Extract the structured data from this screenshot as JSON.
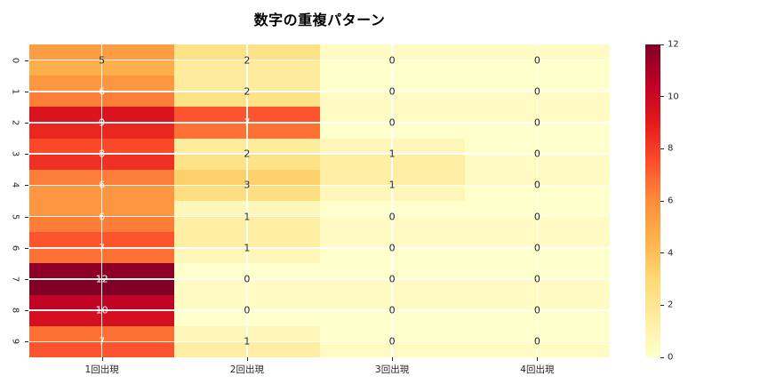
{
  "chart_data": {
    "type": "heatmap",
    "title": "数字の重複パターン",
    "row_labels": [
      "0",
      "1",
      "2",
      "3",
      "4",
      "5",
      "6",
      "7",
      "8",
      "9"
    ],
    "col_labels": [
      "1回出現",
      "2回出現",
      "3回出現",
      "4回出現"
    ],
    "values": [
      [
        5,
        2,
        0,
        0
      ],
      [
        6,
        2,
        0,
        0
      ],
      [
        9,
        7,
        0,
        0
      ],
      [
        8,
        2,
        1,
        0
      ],
      [
        6,
        3,
        1,
        0
      ],
      [
        6,
        1,
        0,
        0
      ],
      [
        7,
        1,
        0,
        0
      ],
      [
        12,
        0,
        0,
        0
      ],
      [
        10,
        0,
        0,
        0
      ],
      [
        7,
        1,
        0,
        0
      ]
    ],
    "vmin": 0,
    "vmax": 12,
    "colorbar_ticks": [
      0,
      2,
      4,
      6,
      8,
      10,
      12
    ],
    "colormap_name": "YlOrRd",
    "colormap_stops": [
      {
        "t": 0.0,
        "hex": "#ffffcc"
      },
      {
        "t": 0.125,
        "hex": "#ffeda0"
      },
      {
        "t": 0.25,
        "hex": "#fed976"
      },
      {
        "t": 0.375,
        "hex": "#feb24c"
      },
      {
        "t": 0.5,
        "hex": "#fd8d3c"
      },
      {
        "t": 0.625,
        "hex": "#fc4e2a"
      },
      {
        "t": 0.75,
        "hex": "#e31a1c"
      },
      {
        "t": 0.875,
        "hex": "#bd0026"
      },
      {
        "t": 1.0,
        "hex": "#800026"
      }
    ],
    "annot_dark_color": "#262626",
    "annot_light_color": "#ffffff",
    "annot_light_threshold": 6,
    "grid": "white lines at tick centers",
    "legend_position": "right-colorbar"
  }
}
